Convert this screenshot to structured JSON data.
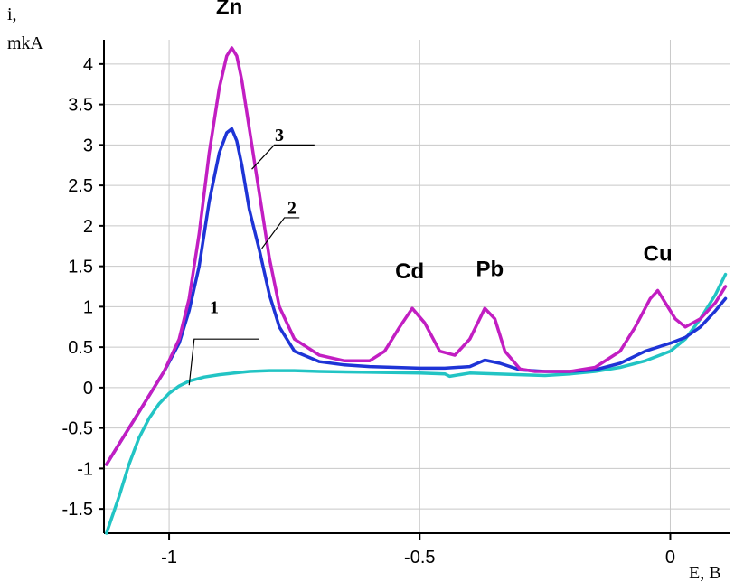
{
  "chart_data": {
    "type": "line",
    "xlabel": "E, B",
    "ylabel_line1": "i,",
    "ylabel_line2": "mkA",
    "xlim": [
      -1.13,
      0.12
    ],
    "ylim": [
      -1.8,
      4.3
    ],
    "x_ticks": [
      {
        "value": -1,
        "label": "-1"
      },
      {
        "value": -0.5,
        "label": "-0.5"
      },
      {
        "value": 0,
        "label": "0"
      }
    ],
    "y_ticks": [
      {
        "value": 4,
        "label": "4"
      },
      {
        "value": 3.5,
        "label": "3.5"
      },
      {
        "value": 3,
        "label": "3"
      },
      {
        "value": 2.5,
        "label": "2.5"
      },
      {
        "value": 2,
        "label": "2"
      },
      {
        "value": 1.5,
        "label": "1.5"
      },
      {
        "value": 1,
        "label": "1"
      },
      {
        "value": 0.5,
        "label": "0.5"
      },
      {
        "value": 0,
        "label": "0"
      },
      {
        "value": -0.5,
        "label": "-0.5"
      },
      {
        "value": -1,
        "label": "-1"
      },
      {
        "value": -1.5,
        "label": "-1.5"
      }
    ],
    "grid": true,
    "series": [
      {
        "name": "1",
        "color": "#22c4c4",
        "x": [
          -1.125,
          -1.1,
          -1.08,
          -1.06,
          -1.04,
          -1.02,
          -1.0,
          -0.98,
          -0.96,
          -0.93,
          -0.9,
          -0.87,
          -0.84,
          -0.8,
          -0.75,
          -0.7,
          -0.6,
          -0.5,
          -0.45,
          -0.44,
          -0.4,
          -0.3,
          -0.25,
          -0.2,
          -0.15,
          -0.1,
          -0.05,
          0.0,
          0.03,
          0.06,
          0.09,
          0.11
        ],
        "y": [
          -1.8,
          -1.35,
          -0.95,
          -0.62,
          -0.38,
          -0.2,
          -0.07,
          0.02,
          0.08,
          0.13,
          0.16,
          0.18,
          0.2,
          0.21,
          0.21,
          0.2,
          0.19,
          0.18,
          0.17,
          0.14,
          0.18,
          0.16,
          0.15,
          0.17,
          0.2,
          0.25,
          0.33,
          0.45,
          0.6,
          0.85,
          1.15,
          1.4
        ]
      },
      {
        "name": "2",
        "color": "#1e34d6",
        "x": [
          -1.125,
          -1.1,
          -1.07,
          -1.04,
          -1.01,
          -0.98,
          -0.96,
          -0.94,
          -0.92,
          -0.9,
          -0.885,
          -0.875,
          -0.865,
          -0.855,
          -0.84,
          -0.82,
          -0.8,
          -0.78,
          -0.75,
          -0.7,
          -0.65,
          -0.6,
          -0.55,
          -0.5,
          -0.45,
          -0.4,
          -0.37,
          -0.34,
          -0.3,
          -0.25,
          -0.2,
          -0.15,
          -0.1,
          -0.05,
          0.0,
          0.03,
          0.06,
          0.09,
          0.11
        ],
        "y": [
          -0.95,
          -0.7,
          -0.4,
          -0.1,
          0.2,
          0.55,
          0.95,
          1.5,
          2.3,
          2.9,
          3.15,
          3.2,
          3.05,
          2.75,
          2.2,
          1.7,
          1.15,
          0.75,
          0.45,
          0.32,
          0.28,
          0.26,
          0.25,
          0.24,
          0.24,
          0.26,
          0.34,
          0.3,
          0.22,
          0.2,
          0.2,
          0.22,
          0.3,
          0.45,
          0.55,
          0.62,
          0.75,
          0.95,
          1.1
        ]
      },
      {
        "name": "3",
        "color": "#c21ec2",
        "x": [
          -1.125,
          -1.1,
          -1.07,
          -1.04,
          -1.01,
          -0.98,
          -0.96,
          -0.94,
          -0.92,
          -0.9,
          -0.885,
          -0.875,
          -0.865,
          -0.855,
          -0.84,
          -0.82,
          -0.8,
          -0.78,
          -0.75,
          -0.7,
          -0.65,
          -0.6,
          -0.57,
          -0.54,
          -0.515,
          -0.49,
          -0.46,
          -0.43,
          -0.4,
          -0.37,
          -0.35,
          -0.33,
          -0.3,
          -0.27,
          -0.25,
          -0.2,
          -0.15,
          -0.1,
          -0.07,
          -0.04,
          -0.025,
          -0.01,
          0.01,
          0.03,
          0.06,
          0.09,
          0.11
        ],
        "y": [
          -0.95,
          -0.7,
          -0.4,
          -0.1,
          0.2,
          0.6,
          1.1,
          1.9,
          2.9,
          3.7,
          4.1,
          4.2,
          4.1,
          3.8,
          3.2,
          2.4,
          1.6,
          1.0,
          0.6,
          0.4,
          0.33,
          0.33,
          0.45,
          0.75,
          0.98,
          0.8,
          0.45,
          0.4,
          0.6,
          0.98,
          0.85,
          0.45,
          0.23,
          0.2,
          0.2,
          0.2,
          0.25,
          0.45,
          0.75,
          1.1,
          1.2,
          1.05,
          0.85,
          0.75,
          0.85,
          1.05,
          1.25
        ]
      }
    ],
    "peak_labels": [
      {
        "text": "Zn",
        "x": -0.88,
        "y": 4.62
      },
      {
        "text": "Cd",
        "x": -0.52,
        "y": 1.35
      },
      {
        "text": "Pb",
        "x": -0.36,
        "y": 1.38
      },
      {
        "text": "Cu",
        "x": -0.025,
        "y": 1.57
      }
    ],
    "curve_labels": [
      {
        "text": "1",
        "x": -0.91,
        "y": 0.92,
        "lx1": -0.96,
        "ly1": 0.03,
        "lx2": -0.95,
        "ly2": 0.6,
        "lx3": -0.82,
        "ly3": 0.6
      },
      {
        "text": "2",
        "x": -0.755,
        "y": 2.15,
        "lx1": -0.815,
        "ly1": 1.72,
        "lx2": -0.77,
        "ly2": 2.1,
        "lx3": -0.74,
        "ly3": 2.1
      },
      {
        "text": "3",
        "x": -0.78,
        "y": 3.05,
        "lx1": -0.835,
        "ly1": 2.7,
        "lx2": -0.79,
        "ly2": 3.0,
        "lx3": -0.71,
        "ly3": 3.0
      }
    ]
  }
}
